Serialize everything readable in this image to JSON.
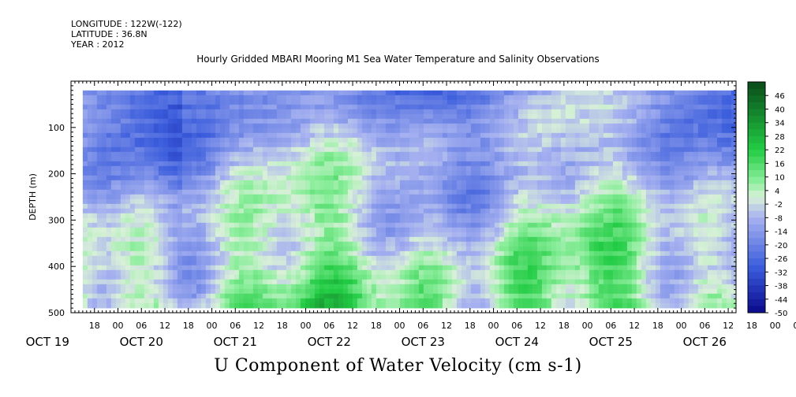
{
  "header": {
    "longitude": "LONGITUDE : 122W(-122)",
    "latitude": "LATITUDE : 36.8N",
    "year": "YEAR : 2012"
  },
  "title": "Hourly Gridded MBARI Mooring M1 Sea Water Temperature and Salinity Observations",
  "variable_title": "U Component of Water Velocity (cm s-1)",
  "chart_data": {
    "type": "heatmap",
    "title": "Hourly Gridded MBARI Mooring M1 Sea Water Temperature and Salinity Observations",
    "xlabel": "",
    "ylabel": "DEPTH (m)",
    "colorbar_title": "U Component of Water Velocity (cm s-1)",
    "ylim": [
      500,
      0
    ],
    "y_ticks": [
      100,
      200,
      300,
      400,
      500
    ],
    "x_hour_ticks": [
      "18",
      "00",
      "06",
      "12",
      "18",
      "00",
      "06",
      "12",
      "18",
      "00",
      "06",
      "12",
      "18",
      "00",
      "06",
      "12",
      "18",
      "00",
      "06",
      "12",
      "18",
      "00",
      "06",
      "12",
      "18",
      "00",
      "06",
      "12",
      "18",
      "00",
      "06",
      "12"
    ],
    "x_day_labels": [
      "OCT 19",
      "OCT 20",
      "OCT 21",
      "OCT 22",
      "OCT 23",
      "OCT 24",
      "OCT 25",
      "OCT 26"
    ],
    "x_range_hours_from_oct19_00": [
      12,
      182
    ],
    "data_extent": {
      "depth_top": 20,
      "depth_bottom": 485
    },
    "colorbar_ticks": [
      46,
      40,
      34,
      28,
      22,
      16,
      10,
      4,
      -2,
      -8,
      -14,
      -20,
      -26,
      -32,
      -38,
      -44,
      -50
    ],
    "colorbar_range": [
      -50,
      52
    ],
    "colors": {
      "neg_strong": "#0a0a8c",
      "neg_mid": "#3a5cdc",
      "neg_light": "#a7b2f0",
      "neutral": "#d8f0d8",
      "pos_light": "#8cee9c",
      "pos_mid": "#22cc44",
      "pos_strong": "#0a4a1a"
    }
  }
}
